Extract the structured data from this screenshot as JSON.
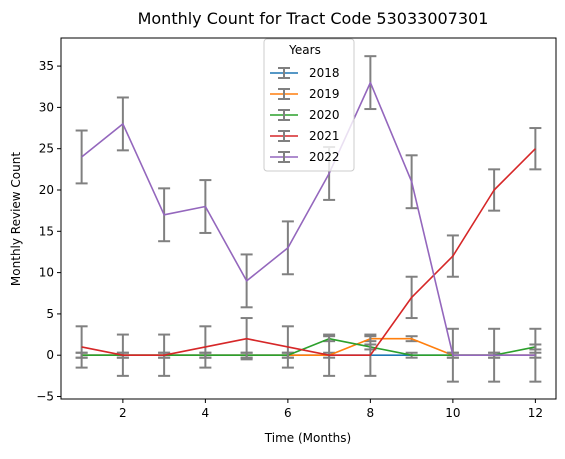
{
  "chart_data": {
    "type": "line",
    "title": "Monthly Count for Tract Code 53033007301",
    "xlabel": "Time (Months)",
    "ylabel": "Monthly Review Count",
    "xlim": [
      0.5,
      12.5
    ],
    "ylim": [
      -5.3,
      38.4
    ],
    "xticks": [
      2,
      4,
      6,
      8,
      10,
      12
    ],
    "yticks": [
      -5,
      0,
      5,
      10,
      15,
      20,
      25,
      30,
      35
    ],
    "grid": false,
    "legend": {
      "title": "Years",
      "placement": "top-center"
    },
    "error_bar_color": "#808080",
    "x": [
      1,
      2,
      3,
      4,
      5,
      6,
      7,
      8,
      9,
      10,
      11,
      12
    ],
    "series": [
      {
        "name": "2018",
        "color": "#1f77b4",
        "values": [
          0,
          0,
          0,
          0,
          0,
          0,
          0,
          0,
          0,
          0,
          0,
          0
        ],
        "error": [
          0,
          0,
          0,
          0,
          0,
          0,
          0,
          0,
          0,
          0,
          0,
          0
        ]
      },
      {
        "name": "2019",
        "color": "#ff7f0e",
        "values": [
          0,
          0,
          0,
          0,
          0,
          0,
          0,
          2,
          2,
          0,
          0,
          0
        ],
        "error": [
          0.3,
          0.3,
          0.3,
          0.3,
          0.3,
          0.3,
          0.3,
          0.3,
          0.3,
          0.3,
          0.3,
          0.3
        ]
      },
      {
        "name": "2020",
        "color": "#2ca02c",
        "values": [
          0,
          0,
          0,
          0,
          0,
          0,
          2,
          1,
          0,
          0,
          0,
          1
        ],
        "error": [
          0.3,
          0.3,
          0.3,
          0.3,
          0.3,
          0.3,
          0.3,
          0.3,
          0.3,
          0.3,
          0.3,
          0.3
        ]
      },
      {
        "name": "2021",
        "color": "#d62728",
        "values": [
          1,
          0,
          0,
          1,
          2,
          1,
          0,
          0,
          7,
          12,
          20,
          25
        ],
        "error": [
          2.5,
          2.5,
          2.5,
          2.5,
          2.5,
          2.5,
          2.5,
          2.5,
          2.5,
          2.5,
          2.5,
          2.5
        ]
      },
      {
        "name": "2022",
        "color": "#9467bd",
        "values": [
          24,
          28,
          17,
          18,
          9,
          13,
          22,
          33,
          21,
          0,
          0,
          0
        ],
        "error": [
          3.2,
          3.2,
          3.2,
          3.2,
          3.2,
          3.2,
          3.2,
          3.2,
          3.2,
          3.2,
          3.2,
          3.2
        ]
      }
    ]
  }
}
